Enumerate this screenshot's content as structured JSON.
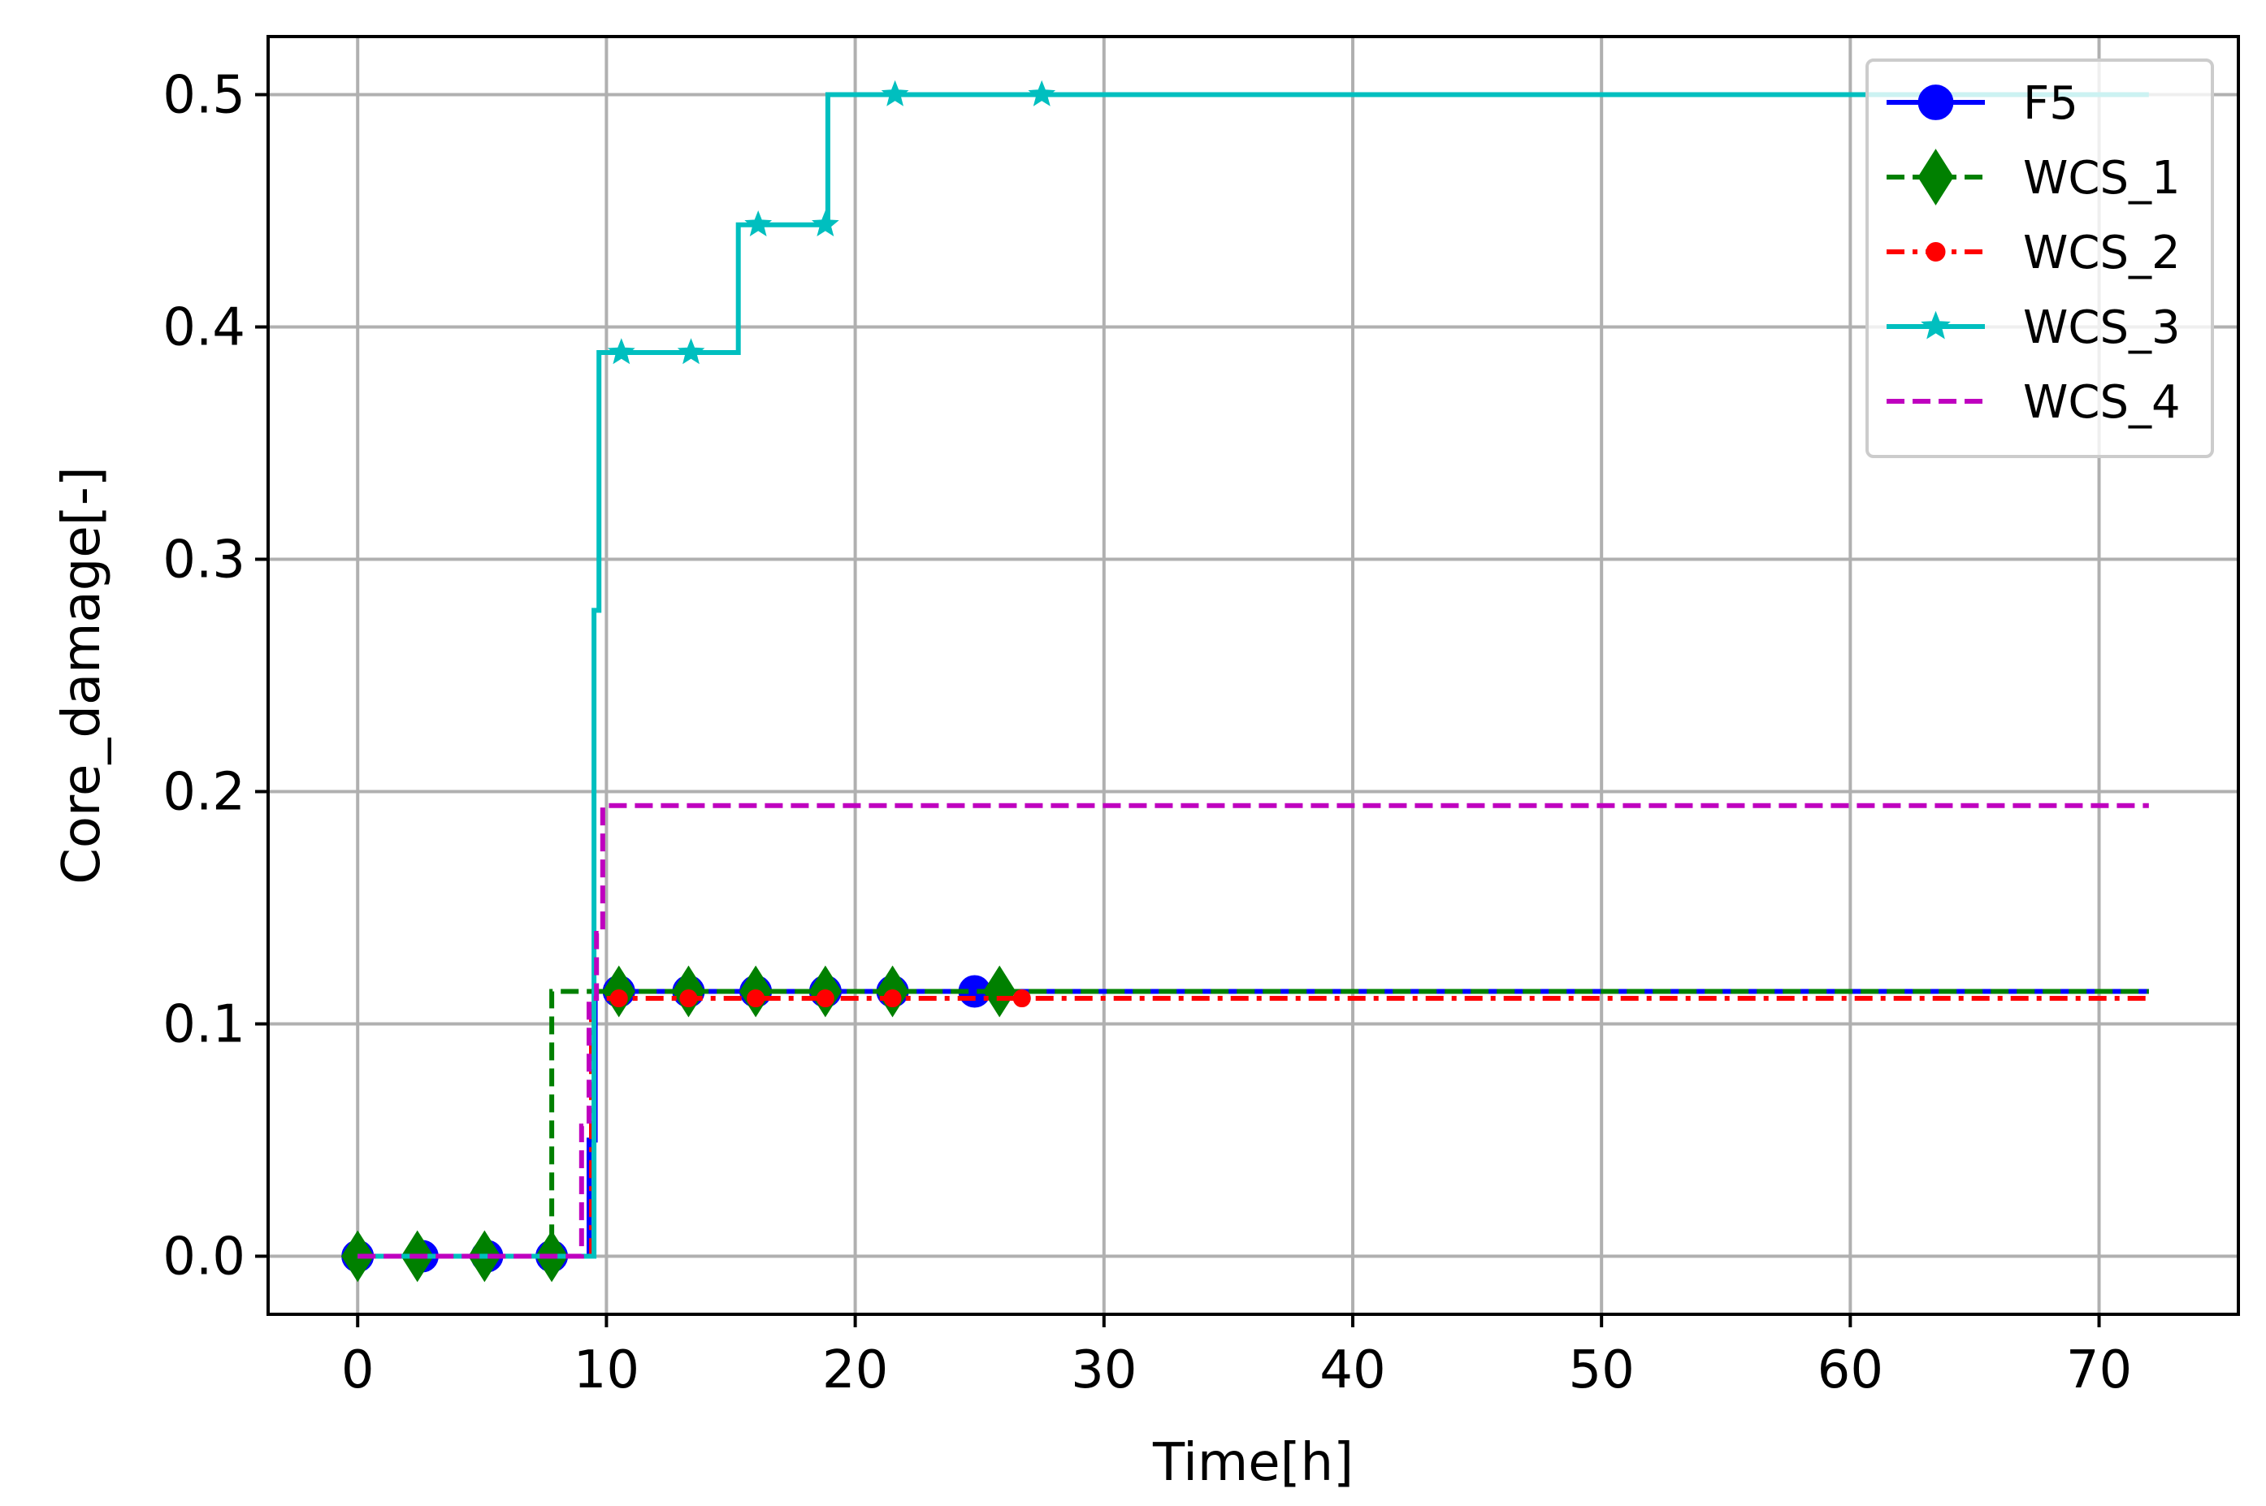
{
  "chart_data": {
    "type": "line",
    "title": "",
    "xlabel": "Time[h]",
    "ylabel": "Core_damage[-]",
    "xlim": [
      -3.6,
      75.6
    ],
    "ylim": [
      -0.025,
      0.525
    ],
    "xticks": [
      0,
      10,
      20,
      30,
      40,
      50,
      60,
      70
    ],
    "yticks": [
      0.0,
      0.1,
      0.2,
      0.3,
      0.4,
      0.5
    ],
    "xtick_labels": [
      "0",
      "10",
      "20",
      "30",
      "40",
      "50",
      "60",
      "70"
    ],
    "ytick_labels": [
      "0.0",
      "0.1",
      "0.2",
      "0.3",
      "0.4",
      "0.5"
    ],
    "grid": true,
    "legend_position": "top-right",
    "series": [
      {
        "name": "F5",
        "color": "#0000ff",
        "dash": "solid",
        "marker": "circle",
        "step_x": [
          0,
          9.3,
          9.3,
          9.55,
          9.55,
          72
        ],
        "step_y": [
          0,
          0,
          0.05,
          0.05,
          0.114,
          0.114
        ],
        "marker_x": [
          0,
          2.6,
          5.2,
          7.8,
          10.5,
          13.3,
          16.0,
          18.8,
          21.5,
          24.8
        ],
        "marker_y": [
          0,
          0,
          0,
          0,
          0.114,
          0.114,
          0.114,
          0.114,
          0.114,
          0.114
        ]
      },
      {
        "name": "WCS_1",
        "color": "#008000",
        "dash": "dashed",
        "marker": "diamond",
        "step_x": [
          0,
          7.8,
          7.8,
          72
        ],
        "step_y": [
          0,
          0,
          0.114,
          0.114
        ],
        "marker_x": [
          0,
          2.4,
          5.1,
          7.8,
          10.5,
          13.3,
          16.0,
          18.8,
          21.5,
          25.8
        ],
        "marker_y": [
          0,
          0,
          0,
          0,
          0.114,
          0.114,
          0.114,
          0.114,
          0.114,
          0.114
        ]
      },
      {
        "name": "WCS_2",
        "color": "#ff0000",
        "dash": "dashdot",
        "marker": "point",
        "step_x": [
          0,
          9.4,
          9.4,
          72
        ],
        "step_y": [
          0,
          0,
          0.111,
          0.111
        ],
        "marker_x": [
          10.5,
          13.3,
          16.0,
          18.8,
          21.5,
          26.7
        ],
        "marker_y": [
          0.111,
          0.111,
          0.111,
          0.111,
          0.111,
          0.111
        ]
      },
      {
        "name": "WCS_3",
        "color": "#00bfbf",
        "dash": "solid",
        "marker": "star",
        "step_x": [
          0,
          9.5,
          9.5,
          9.7,
          9.7,
          15.3,
          15.3,
          18.9,
          18.9,
          72
        ],
        "step_y": [
          0,
          0,
          0.278,
          0.278,
          0.389,
          0.389,
          0.444,
          0.444,
          0.5,
          0.5
        ],
        "marker_x": [
          10.6,
          13.4,
          16.1,
          18.8,
          21.6,
          27.5
        ],
        "marker_y": [
          0.389,
          0.389,
          0.444,
          0.444,
          0.5,
          0.5
        ]
      },
      {
        "name": "WCS_4",
        "color": "#bf00bf",
        "dash": "dashed",
        "marker": "none",
        "step_x": [
          0,
          9.0,
          9.0,
          9.3,
          9.3,
          9.6,
          9.6,
          9.85,
          9.85,
          72
        ],
        "step_y": [
          0,
          0,
          0.056,
          0.056,
          0.111,
          0.111,
          0.139,
          0.139,
          0.194,
          0.194
        ],
        "marker_x": [],
        "marker_y": []
      }
    ]
  }
}
